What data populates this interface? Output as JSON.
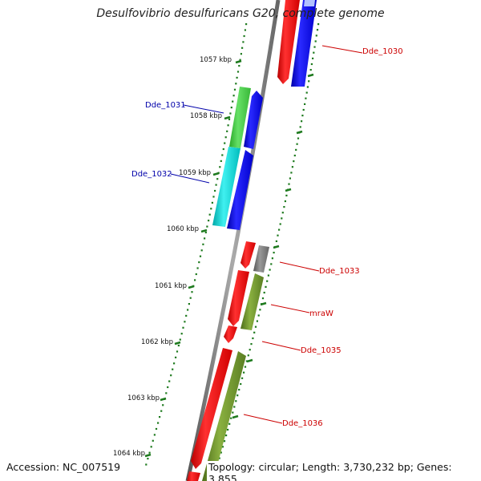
{
  "title": "Desulfovibrio desulfuricans G20, complete genome",
  "footer": {
    "accession": "Accession: NC_007519",
    "summary": "Topology: circular; Length: 3,730,232 bp; Genes: 3,855"
  },
  "colors": {
    "backbone": "#7a7a7a",
    "tick": "#1e7a1e",
    "forward_gene": "#0000ee",
    "reverse_gene": "#ee0000",
    "label_forward": "#0000aa",
    "label_reverse": "#cc0000"
  },
  "scale_ticks": [
    {
      "label": "1057 kbp"
    },
    {
      "label": "1058 kbp"
    },
    {
      "label": "1059 kbp"
    },
    {
      "label": "1060 kbp"
    },
    {
      "label": "1061 kbp"
    },
    {
      "label": "1062 kbp"
    },
    {
      "label": "1063 kbp"
    },
    {
      "label": "1064 kbp"
    }
  ],
  "genes": [
    {
      "label": "Dde_1030",
      "strand": "reverse"
    },
    {
      "label": "Dde_1031",
      "strand": "forward"
    },
    {
      "label": "Dde_1032",
      "strand": "forward"
    },
    {
      "label": "Dde_1033",
      "strand": "reverse"
    },
    {
      "label": "mraW",
      "strand": "reverse"
    },
    {
      "label": "Dde_1035",
      "strand": "reverse"
    },
    {
      "label": "Dde_1036",
      "strand": "reverse"
    }
  ]
}
